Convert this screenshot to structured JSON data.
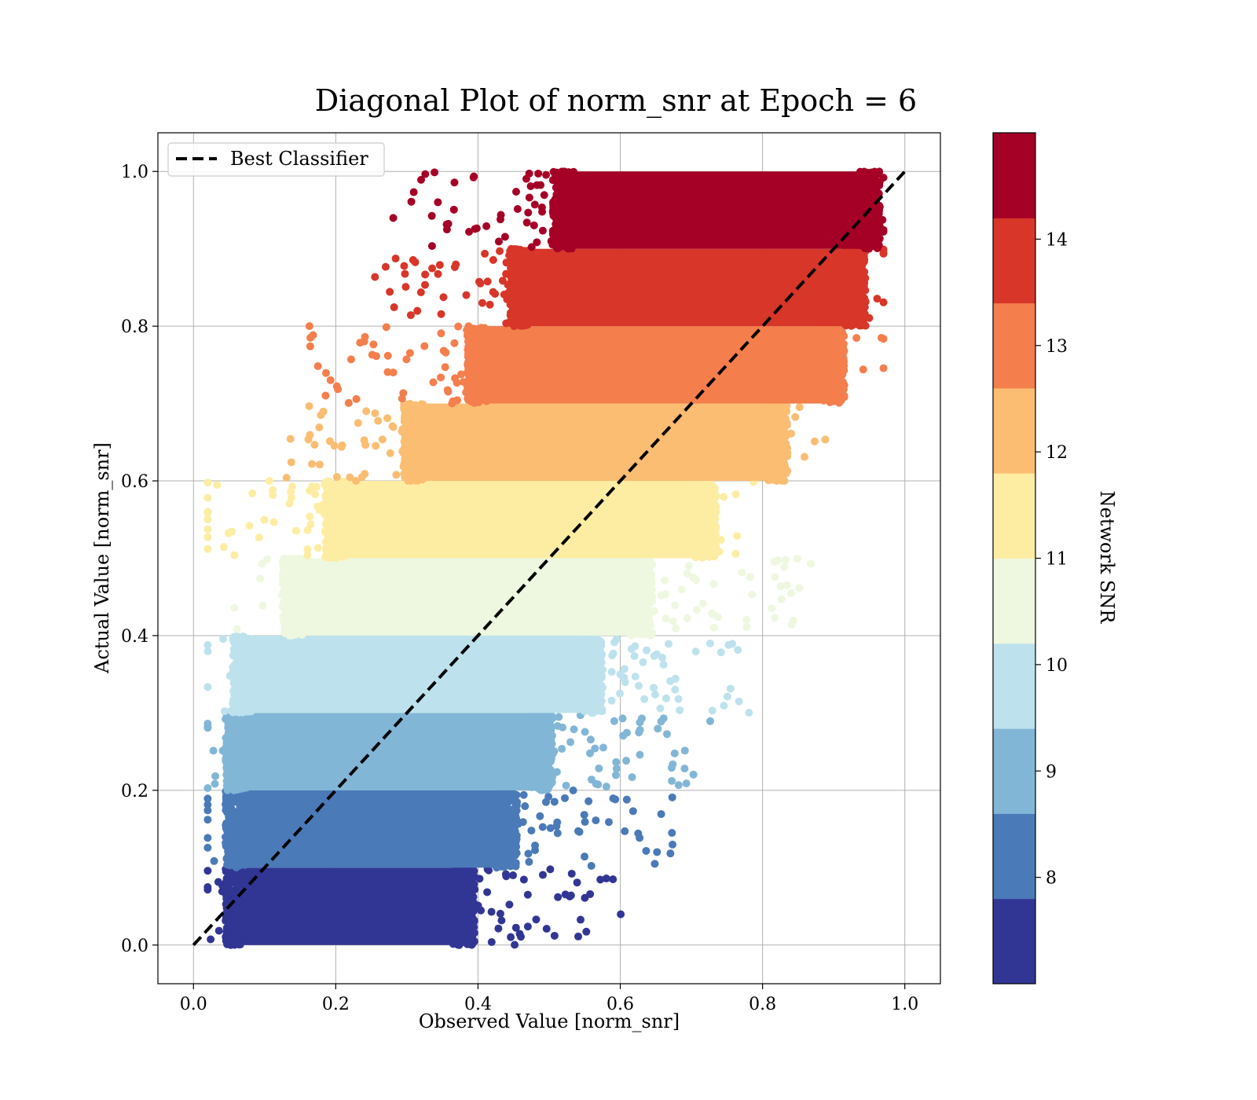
{
  "chart_data": {
    "type": "scatter",
    "title": "Diagonal Plot of norm_snr at Epoch = 6",
    "xlabel": "Observed Value [norm_snr]",
    "ylabel": "Actual Value [norm_snr]",
    "xlim": [
      -0.05,
      1.05
    ],
    "ylim": [
      -0.05,
      1.05
    ],
    "x_ticks": [
      "0.0",
      "0.2",
      "0.4",
      "0.6",
      "0.8",
      "1.0"
    ],
    "y_ticks": [
      "0.0",
      "0.2",
      "0.4",
      "0.6",
      "0.8",
      "1.0"
    ],
    "grid": true,
    "legend": {
      "position": "top-left",
      "entries": [
        "Best Classifier"
      ]
    },
    "reference_line": {
      "name": "Best Classifier",
      "x": [
        0.0,
        1.0
      ],
      "y": [
        0.0,
        1.0
      ],
      "style": "dashed",
      "color": "#000000"
    },
    "colorbar": {
      "label": "Network SNR",
      "range": [
        7.0,
        15.0
      ],
      "tick_labels": [
        "8",
        "9",
        "10",
        "11",
        "12",
        "13",
        "14"
      ],
      "tick_values": [
        8,
        9,
        10,
        11,
        12,
        13,
        14
      ]
    },
    "bands": [
      {
        "y_range": [
          0.0,
          0.1
        ],
        "x_core": [
          0.06,
          0.38
        ],
        "color": "#313695"
      },
      {
        "y_range": [
          0.1,
          0.2
        ],
        "x_core": [
          0.06,
          0.44
        ],
        "color": "#4a7ab7"
      },
      {
        "y_range": [
          0.2,
          0.3
        ],
        "x_core": [
          0.06,
          0.49
        ],
        "color": "#82b6d7"
      },
      {
        "y_range": [
          0.3,
          0.4
        ],
        "x_core": [
          0.07,
          0.56
        ],
        "color": "#bde2ed"
      },
      {
        "y_range": [
          0.4,
          0.5
        ],
        "x_core": [
          0.14,
          0.63
        ],
        "color": "#eef7e0"
      },
      {
        "y_range": [
          0.5,
          0.6
        ],
        "x_core": [
          0.2,
          0.72
        ],
        "color": "#fdeda3"
      },
      {
        "y_range": [
          0.6,
          0.7
        ],
        "x_core": [
          0.31,
          0.82
        ],
        "color": "#fbbd72"
      },
      {
        "y_range": [
          0.7,
          0.8
        ],
        "x_core": [
          0.4,
          0.9
        ],
        "color": "#f47e4c"
      },
      {
        "y_range": [
          0.8,
          0.9
        ],
        "x_core": [
          0.46,
          0.93
        ],
        "color": "#d73629"
      },
      {
        "y_range": [
          0.9,
          1.0
        ],
        "x_core": [
          0.52,
          0.95
        ],
        "color": "#a50026"
      }
    ]
  }
}
